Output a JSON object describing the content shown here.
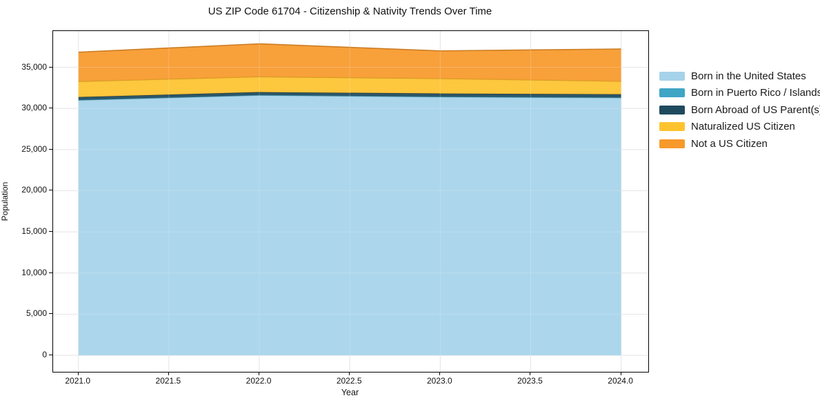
{
  "chart_data": {
    "type": "area",
    "stacked": true,
    "title": "US ZIP Code 61704 - Citizenship & Nativity Trends Over Time",
    "xlabel": "Year",
    "ylabel": "Population",
    "x": [
      2021,
      2022,
      2023,
      2024
    ],
    "series": [
      {
        "name": "Born in the United States",
        "color": "#a6d3ea",
        "values": [
          31000,
          31600,
          31400,
          31300
        ]
      },
      {
        "name": "Born in Puerto Rico / Islands",
        "color": "#3fa5c5",
        "values": [
          40,
          40,
          40,
          40
        ]
      },
      {
        "name": "Born Abroad of US Parent(s)",
        "color": "#1f4a5e",
        "values": [
          340,
          340,
          370,
          380
        ]
      },
      {
        "name": "Naturalized US Citizen",
        "color": "#fdc32f",
        "values": [
          1900,
          1870,
          1820,
          1580
        ]
      },
      {
        "name": "Not a US Citizen",
        "color": "#f8992b",
        "values": [
          3550,
          4000,
          3360,
          3920
        ]
      }
    ],
    "xlim": [
      2020.86,
      2024.15
    ],
    "ylim": [
      -2000,
      39400
    ],
    "x_ticks": [
      "2021.0",
      "2021.5",
      "2022.0",
      "2022.5",
      "2023.0",
      "2023.5",
      "2024.0"
    ],
    "x_tick_values": [
      2021.0,
      2021.5,
      2022.0,
      2022.5,
      2023.0,
      2023.5,
      2024.0
    ],
    "y_ticks": [
      "0",
      "5,000",
      "10,000",
      "15,000",
      "20,000",
      "25,000",
      "30,000",
      "35,000"
    ],
    "y_tick_values": [
      0,
      5000,
      10000,
      15000,
      20000,
      25000,
      30000,
      35000
    ],
    "grid": true,
    "grid_color": "#dedede",
    "legend_position": "right outside",
    "spine_color": "#000000"
  }
}
